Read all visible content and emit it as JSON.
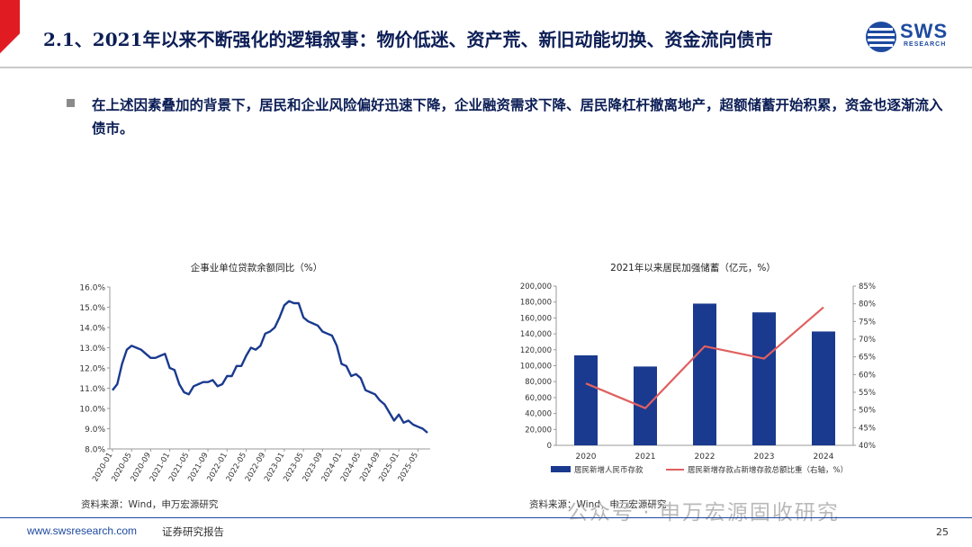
{
  "header": {
    "title": "2.1、2021年以来不断强化的逻辑叙事：物价低迷、资产荒、新旧动能切换、资金流向债市",
    "logo_text": "SWS",
    "logo_sub": "RESEARCH"
  },
  "bullet": {
    "text": "在上述因素叠加的背景下，居民和企业风险偏好迅速下降，企业融资需求下降、居民降杠杆撤离地产，超额储蓄开始积累，资金也逐渐流入债市。"
  },
  "chart_data": [
    {
      "type": "line",
      "title": "企事业单位贷款余额同比（%）",
      "source": "资料来源：Wind，申万宏源研究",
      "ylim": [
        8.0,
        16.0
      ],
      "yticks": [
        "16.0%",
        "15.0%",
        "14.0%",
        "13.0%",
        "12.0%",
        "11.0%",
        "10.0%",
        "9.0%",
        "8.0%"
      ],
      "xticks": [
        "2020-01",
        "2020-05",
        "2020-09",
        "2021-01",
        "2021-05",
        "2021-09",
        "2022-01",
        "2022-05",
        "2022-09",
        "2023-01",
        "2023-05",
        "2023-09",
        "2024-01",
        "2024-05",
        "2024-09",
        "2025-01",
        "2025-05"
      ],
      "color": "#1a3a8f",
      "values": [
        10.9,
        11.2,
        12.2,
        12.9,
        13.1,
        13.0,
        12.9,
        12.7,
        12.5,
        12.5,
        12.6,
        12.7,
        12.0,
        11.9,
        11.2,
        10.8,
        10.7,
        11.1,
        11.2,
        11.3,
        11.3,
        11.4,
        11.1,
        11.2,
        11.6,
        11.6,
        12.1,
        12.1,
        12.6,
        13.0,
        12.9,
        13.1,
        13.7,
        13.8,
        14.0,
        14.5,
        15.1,
        15.3,
        15.2,
        15.2,
        14.5,
        14.3,
        14.2,
        14.1,
        13.8,
        13.7,
        13.6,
        13.1,
        12.2,
        12.1,
        11.6,
        11.7,
        11.5,
        10.9,
        10.8,
        10.7,
        10.4,
        10.2,
        9.8,
        9.4,
        9.7,
        9.3,
        9.4,
        9.2,
        9.1,
        9.0,
        8.8
      ]
    },
    {
      "type": "bar",
      "title": "2021年以来居民加强储蓄（亿元，%）",
      "source": "资料来源：Wind，申万宏源研究",
      "categories": [
        "2020",
        "2021",
        "2022",
        "2023",
        "2024"
      ],
      "ylim": [
        0,
        200000
      ],
      "yticks": [
        "200,000",
        "180,000",
        "160,000",
        "140,000",
        "120,000",
        "100,000",
        "80,000",
        "60,000",
        "40,000",
        "20,000",
        "0"
      ],
      "y2lim": [
        40,
        85
      ],
      "y2ticks": [
        "85%",
        "80%",
        "75%",
        "70%",
        "65%",
        "60%",
        "55%",
        "50%",
        "45%",
        "40%"
      ],
      "series": [
        {
          "name": "居民新增人民币存款",
          "type": "bar",
          "color": "#1a3a8f",
          "values": [
            113000,
            99000,
            178000,
            167000,
            143000
          ]
        },
        {
          "name": "居民新增存款占新增存款总额比重（右轴，%）",
          "type": "line",
          "color": "#e06060",
          "values": [
            57.5,
            50.5,
            68.0,
            64.5,
            79.0
          ]
        }
      ]
    }
  ],
  "footer": {
    "url": "www.swsresearch.com",
    "label": "证券研究报告",
    "page": "25",
    "watermark": "公众号 · 申万宏源固收研究"
  }
}
